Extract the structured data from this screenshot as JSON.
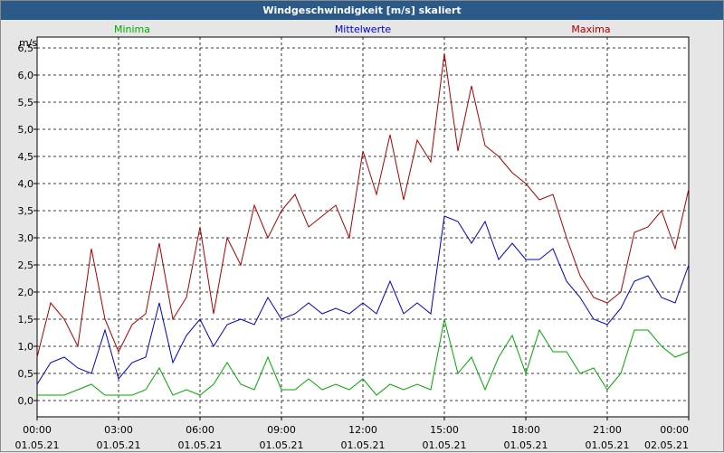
{
  "window": {
    "title": "Windgeschwindigkeit [m/s] skaliert"
  },
  "chart_data": {
    "type": "line",
    "title": "Windgeschwindigkeit [m/s] skaliert",
    "ylabel": "m/s",
    "ylim": [
      -0.3,
      6.7
    ],
    "y_ticks": [
      "0,0",
      "0,5",
      "1,0",
      "1,5",
      "2,0",
      "2,5",
      "3,0",
      "3,5",
      "4,0",
      "4,5",
      "5,0",
      "5,5",
      "6,0",
      "6,5"
    ],
    "y_tick_values": [
      0,
      0.5,
      1,
      1.5,
      2,
      2.5,
      3,
      3.5,
      4,
      4.5,
      5,
      5.5,
      6,
      6.5
    ],
    "x_ticks": [
      {
        "time": "00:00",
        "date": "01.05.21"
      },
      {
        "time": "03:00",
        "date": "01.05.21"
      },
      {
        "time": "06:00",
        "date": "01.05.21"
      },
      {
        "time": "09:00",
        "date": "01.05.21"
      },
      {
        "time": "12:00",
        "date": "01.05.21"
      },
      {
        "time": "15:00",
        "date": "01.05.21"
      },
      {
        "time": "18:00",
        "date": "01.05.21"
      },
      {
        "time": "21:00",
        "date": "01.05.21"
      },
      {
        "time": "00:00",
        "date": "02.05.21"
      }
    ],
    "xlim_hours": [
      0,
      24
    ],
    "grid": true,
    "legend_position": "top",
    "series": [
      {
        "name": "Minima",
        "color": "#00aa00",
        "x": [
          0,
          0.5,
          1,
          1.5,
          2,
          2.5,
          3,
          3.5,
          4,
          4.5,
          5,
          5.5,
          6,
          6.5,
          7,
          7.5,
          8,
          8.5,
          9,
          9.5,
          10,
          10.5,
          11,
          11.5,
          12,
          12.5,
          13,
          13.5,
          14,
          14.5,
          15,
          15.5,
          16,
          16.5,
          17,
          17.5,
          18,
          18.5,
          19,
          19.5,
          20,
          20.5,
          21,
          21.5,
          22,
          22.5,
          23,
          23.5,
          24
        ],
        "values": [
          0.1,
          0.1,
          0.1,
          0.2,
          0.3,
          0.1,
          0.1,
          0.1,
          0.2,
          0.6,
          0.1,
          0.2,
          0.1,
          0.3,
          0.7,
          0.3,
          0.2,
          0.8,
          0.2,
          0.2,
          0.4,
          0.2,
          0.3,
          0.2,
          0.4,
          0.1,
          0.3,
          0.2,
          0.3,
          0.2,
          1.5,
          0.5,
          0.8,
          0.2,
          0.8,
          1.2,
          0.5,
          1.3,
          0.9,
          0.9,
          0.5,
          0.6,
          0.2,
          0.5,
          1.3,
          1.3,
          1.0,
          0.8,
          0.9
        ]
      },
      {
        "name": "Mittelwerte",
        "color": "#0000cc",
        "x": [
          0,
          0.5,
          1,
          1.5,
          2,
          2.5,
          3,
          3.5,
          4,
          4.5,
          5,
          5.5,
          6,
          6.5,
          7,
          7.5,
          8,
          8.5,
          9,
          9.5,
          10,
          10.5,
          11,
          11.5,
          12,
          12.5,
          13,
          13.5,
          14,
          14.5,
          15,
          15.5,
          16,
          16.5,
          17,
          17.5,
          18,
          18.5,
          19,
          19.5,
          20,
          20.5,
          21,
          21.5,
          22,
          22.5,
          23,
          23.5,
          24
        ],
        "values": [
          0.3,
          0.7,
          0.8,
          0.6,
          0.5,
          1.3,
          0.4,
          0.7,
          0.8,
          1.8,
          0.7,
          1.2,
          1.5,
          1.0,
          1.4,
          1.5,
          1.4,
          1.9,
          1.5,
          1.6,
          1.8,
          1.6,
          1.7,
          1.6,
          1.8,
          1.6,
          2.2,
          1.6,
          1.8,
          1.6,
          3.4,
          3.3,
          2.9,
          3.3,
          2.6,
          2.9,
          2.6,
          2.6,
          2.8,
          2.2,
          1.9,
          1.5,
          1.4,
          1.7,
          2.2,
          2.3,
          1.9,
          1.8,
          2.5
        ]
      },
      {
        "name": "Maxima",
        "color": "#aa0000",
        "x": [
          0,
          0.5,
          1,
          1.5,
          2,
          2.5,
          3,
          3.5,
          4,
          4.5,
          5,
          5.5,
          6,
          6.5,
          7,
          7.5,
          8,
          8.5,
          9,
          9.5,
          10,
          10.5,
          11,
          11.5,
          12,
          12.5,
          13,
          13.5,
          14,
          14.5,
          15,
          15.5,
          16,
          16.5,
          17,
          17.5,
          18,
          18.5,
          19,
          19.5,
          20,
          20.5,
          21,
          21.5,
          22,
          22.5,
          23,
          23.5,
          24
        ],
        "values": [
          0.8,
          1.8,
          1.5,
          1.0,
          2.8,
          1.5,
          0.9,
          1.4,
          1.6,
          2.9,
          1.5,
          1.9,
          3.2,
          1.6,
          3.0,
          2.5,
          3.6,
          3.0,
          3.5,
          3.8,
          3.2,
          3.4,
          3.6,
          3.0,
          4.6,
          3.8,
          4.9,
          3.7,
          4.8,
          4.4,
          6.4,
          4.6,
          5.8,
          4.7,
          4.5,
          4.2,
          4.0,
          3.7,
          3.8,
          3.0,
          2.3,
          1.9,
          1.8,
          2.0,
          3.1,
          3.2,
          3.5,
          2.8,
          3.9
        ]
      }
    ]
  }
}
